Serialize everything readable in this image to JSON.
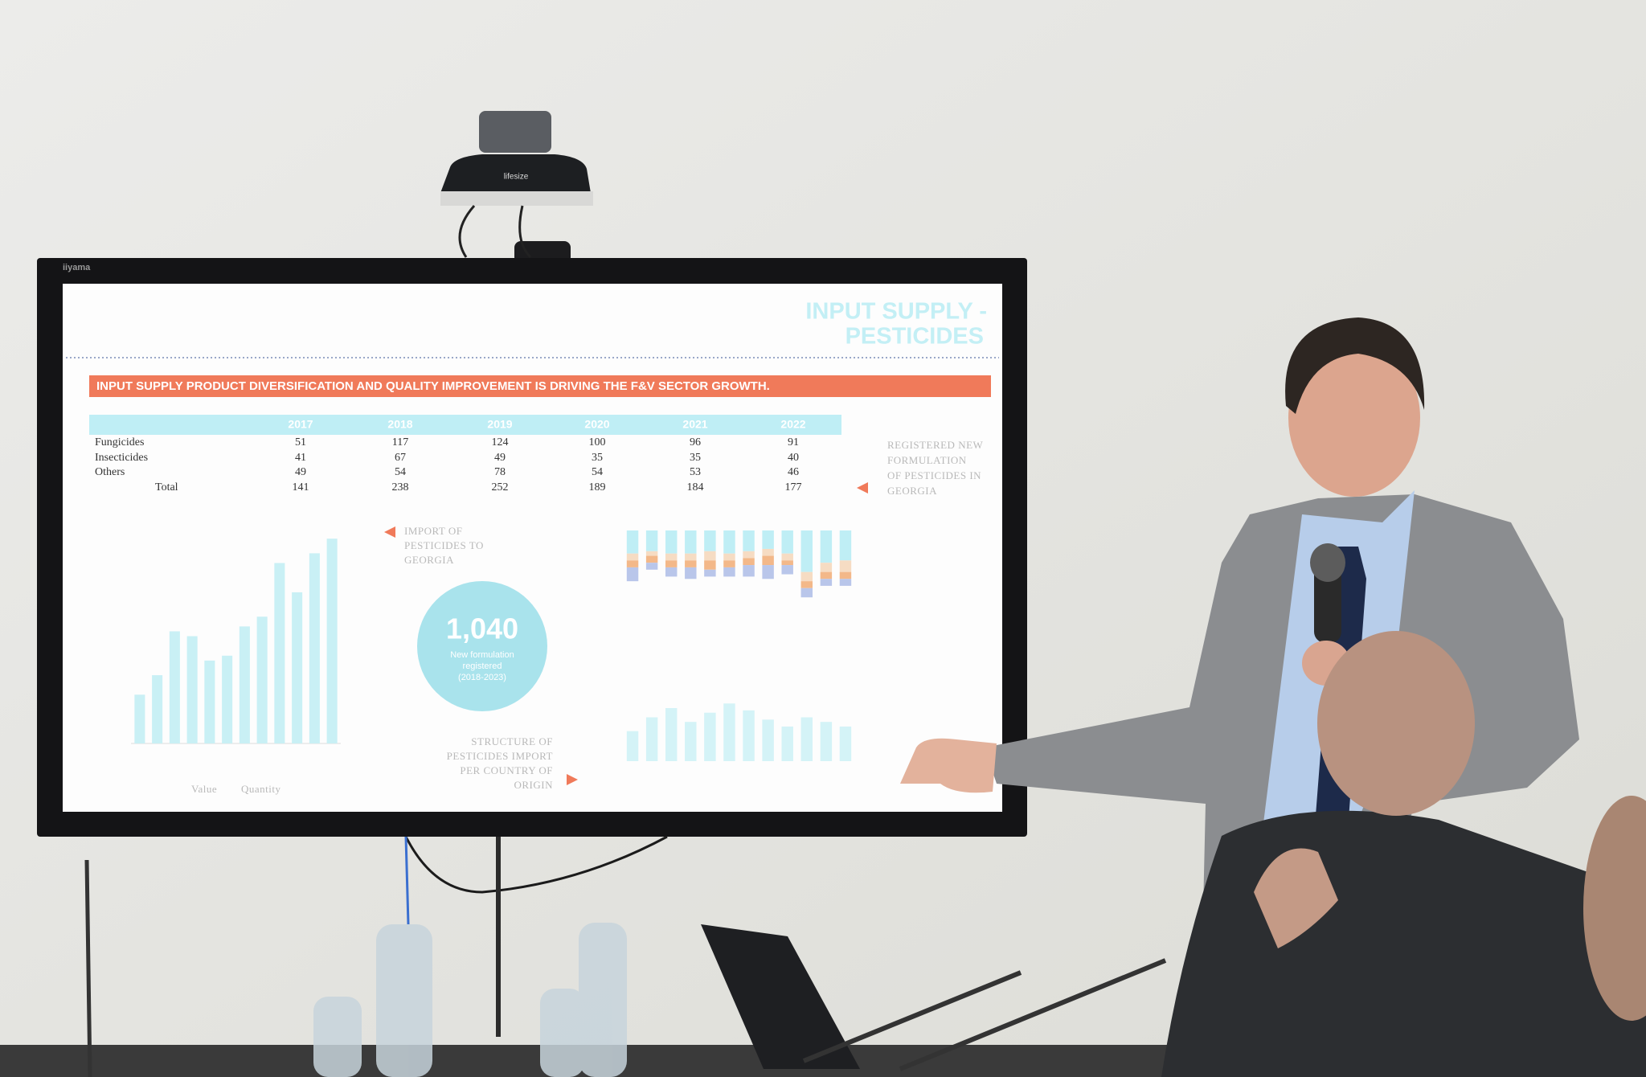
{
  "camera": {
    "brand": "lifesize"
  },
  "monitor": {
    "brand": "iiyama"
  },
  "slide": {
    "title": [
      "INPUT SUPPLY -",
      "PESTICIDES"
    ],
    "banner": "INPUT SUPPLY PRODUCT DIVERSIFICATION AND QUALITY IMPROVEMENT IS DRIVING THE F&V SECTOR GROWTH.",
    "table": {
      "years": [
        "2017",
        "2018",
        "2019",
        "2020",
        "2021",
        "2022"
      ],
      "rows": [
        {
          "label": "Fungicides",
          "values": [
            51,
            117,
            124,
            100,
            96,
            91
          ]
        },
        {
          "label": "Insecticides",
          "values": [
            41,
            67,
            49,
            35,
            35,
            40
          ]
        },
        {
          "label": "Others",
          "values": [
            49,
            54,
            78,
            54,
            53,
            46
          ]
        },
        {
          "label": "Total",
          "values": [
            141,
            238,
            252,
            189,
            184,
            177
          ]
        }
      ]
    },
    "registered_note": [
      "REGISTERED NEW",
      "FORMULATION",
      "OF PESTICIDES IN",
      "GEORGIA"
    ],
    "import_note": [
      "IMPORT OF",
      "PESTICIDES TO",
      "GEORGIA"
    ],
    "structure_note": [
      "STRUCTURE OF",
      "PESTICIDES IMPORT",
      "PER COUNTRY OF",
      "ORIGIN"
    ],
    "highlight": {
      "value": "1,040",
      "caption": [
        "New formulation",
        "registered",
        "(2018-2023)"
      ]
    },
    "import_chart": {
      "ylim": [
        0,
        45
      ],
      "color": "#c9f0f5",
      "values": [
        10,
        14,
        23,
        22,
        17,
        18,
        24,
        26,
        37,
        31,
        39,
        42
      ],
      "legend": [
        "Value",
        "Quantity"
      ]
    },
    "structure_chart": {
      "scale_max": 100,
      "series": [
        {
          "color": "#bfeef5",
          "values": [
            10,
            9,
            10,
            10,
            9,
            10,
            9,
            8,
            10,
            18,
            14,
            13
          ]
        },
        {
          "color": "#f6dcc3",
          "values": [
            3,
            2,
            3,
            3,
            4,
            3,
            3,
            3,
            3,
            4,
            4,
            5
          ]
        },
        {
          "color": "#f3b889",
          "values": [
            3,
            3,
            3,
            3,
            4,
            3,
            3,
            4,
            2,
            3,
            3,
            3
          ]
        },
        {
          "color": "#b9c6ea",
          "values": [
            6,
            3,
            4,
            5,
            3,
            4,
            5,
            6,
            4,
            4,
            3,
            3
          ]
        }
      ],
      "volume": [
        13,
        19,
        23,
        17,
        21,
        25,
        22,
        18,
        15,
        19,
        17,
        15
      ]
    }
  }
}
